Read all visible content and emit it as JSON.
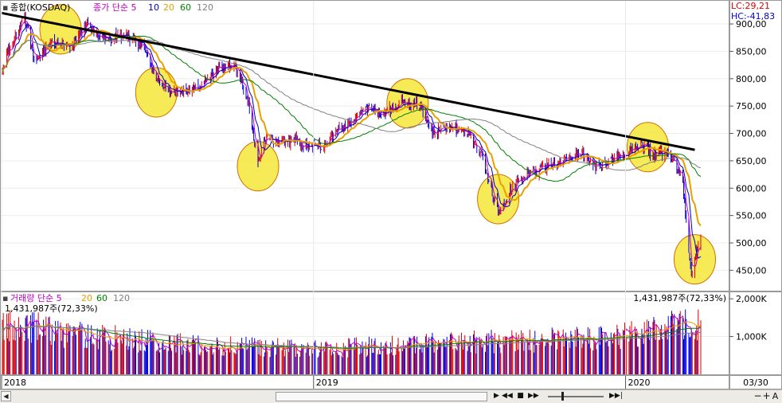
{
  "price_legend": {
    "prefix": "▪",
    "title": "종합(KOSDAQ)",
    "series": [
      {
        "label": "종가 단순 5",
        "color": "#c000c0"
      },
      {
        "label": "10",
        "color": "#0000c0"
      },
      {
        "label": "20",
        "color": "#e8a000"
      },
      {
        "label": "60",
        "color": "#008000"
      },
      {
        "label": "120",
        "color": "#808080"
      }
    ]
  },
  "price_info": {
    "lc": "LC:29,21",
    "hc": "HC:-41,83"
  },
  "volume_legend": {
    "prefix": "▪",
    "series": [
      {
        "label": "거래량  단순 5",
        "color": "#c000c0"
      },
      {
        "label": "20",
        "color": "#e8a000"
      },
      {
        "label": "60",
        "color": "#008000"
      },
      {
        "label": "120",
        "color": "#808080"
      }
    ],
    "value_left": "1,431,987주(72,33%)",
    "value_right": "1,431,987주(72,33%)"
  },
  "x_axis": {
    "labels": [
      "2018",
      "2019",
      "2020"
    ],
    "corner_label": "03/30"
  },
  "toolbar": {
    "icons": [
      "prev-icon",
      "rewind-icon",
      "stop-icon",
      "fast-forward-icon",
      "next-icon",
      "zoom-out-icon",
      "zoom-in-icon",
      "text-icon"
    ],
    "glyphs": [
      "▶",
      "◀◀",
      "■",
      "▶▶",
      "▶▶|",
      "−",
      "+",
      "A"
    ]
  },
  "chart_data": [
    {
      "type": "candlestick",
      "title": "종합(KOSDAQ)",
      "y_ticks": [
        450,
        500,
        550,
        600,
        650,
        700,
        750,
        800,
        850,
        900
      ],
      "y_tick_labels": [
        "450,00",
        "500,00",
        "550,00",
        "600,00",
        "650,00",
        "700,00",
        "750,00",
        "800,00",
        "850,00",
        "900,00"
      ],
      "ylim": [
        420,
        935
      ],
      "x_range": [
        "2018-01",
        "2020-03-30"
      ],
      "close_path": [
        [
          "2018-01-02",
          820
        ],
        [
          "2018-01-29",
          915
        ],
        [
          "2018-02-09",
          830
        ],
        [
          "2018-03-02",
          870
        ],
        [
          "2018-03-26",
          860
        ],
        [
          "2018-04-12",
          900
        ],
        [
          "2018-05-02",
          870
        ],
        [
          "2018-05-25",
          880
        ],
        [
          "2018-06-15",
          860
        ],
        [
          "2018-07-02",
          805
        ],
        [
          "2018-07-17",
          780
        ],
        [
          "2018-08-01",
          775
        ],
        [
          "2018-08-22",
          785
        ],
        [
          "2018-09-13",
          820
        ],
        [
          "2018-10-01",
          825
        ],
        [
          "2018-10-16",
          770
        ],
        [
          "2018-10-29",
          640
        ],
        [
          "2018-11-06",
          690
        ],
        [
          "2018-11-22",
          680
        ],
        [
          "2018-12-10",
          690
        ],
        [
          "2018-12-28",
          675
        ],
        [
          "2019-01-14",
          680
        ],
        [
          "2019-01-31",
          705
        ],
        [
          "2019-02-21",
          730
        ],
        [
          "2019-03-11",
          745
        ],
        [
          "2019-03-25",
          735
        ],
        [
          "2019-04-15",
          760
        ],
        [
          "2019-05-06",
          750
        ],
        [
          "2019-05-21",
          700
        ],
        [
          "2019-06-11",
          715
        ],
        [
          "2019-07-01",
          700
        ],
        [
          "2019-07-18",
          660
        ],
        [
          "2019-08-06",
          555
        ],
        [
          "2019-08-21",
          600
        ],
        [
          "2019-09-10",
          625
        ],
        [
          "2019-09-30",
          640
        ],
        [
          "2019-10-21",
          650
        ],
        [
          "2019-11-11",
          665
        ],
        [
          "2019-11-28",
          640
        ],
        [
          "2019-12-16",
          650
        ],
        [
          "2020-01-02",
          665
        ],
        [
          "2020-01-20",
          680
        ],
        [
          "2020-02-05",
          660
        ],
        [
          "2020-02-21",
          670
        ],
        [
          "2020-03-09",
          610
        ],
        [
          "2020-03-19",
          440
        ],
        [
          "2020-03-30",
          520
        ]
      ],
      "moving_averages": [
        {
          "name": "5",
          "color": "#c000c0"
        },
        {
          "name": "10",
          "color": "#0000c0"
        },
        {
          "name": "20",
          "color": "#e8a000"
        },
        {
          "name": "60",
          "color": "#008000"
        },
        {
          "name": "120",
          "color": "#808080"
        }
      ],
      "annotations": {
        "trendline": {
          "from": [
            "2018-01-02",
            920
          ],
          "to": [
            "2020-03-23",
            670
          ],
          "color": "#000000"
        },
        "circles_color": "#f5e63a",
        "circles": [
          {
            "date": "2018-03-12",
            "price": 890
          },
          {
            "date": "2018-07-02",
            "price": 775
          },
          {
            "date": "2018-10-29",
            "price": 640
          },
          {
            "date": "2019-04-22",
            "price": 755
          },
          {
            "date": "2019-08-06",
            "price": 580
          },
          {
            "date": "2020-01-28",
            "price": 675
          },
          {
            "date": "2020-03-23",
            "price": 470
          }
        ]
      }
    },
    {
      "type": "bar",
      "title": "거래량",
      "y_ticks": [
        1000,
        2000
      ],
      "y_tick_labels": [
        "1,000K",
        "2,000K"
      ],
      "ylim": [
        0,
        2150
      ],
      "volume_path": [
        [
          "2018-01-02",
          1250
        ],
        [
          "2018-01-29",
          1400
        ],
        [
          "2018-03-12",
          1150
        ],
        [
          "2018-05-02",
          1050
        ],
        [
          "2018-07-02",
          900
        ],
        [
          "2018-09-13",
          800
        ],
        [
          "2018-11-06",
          750
        ],
        [
          "2019-01-14",
          700
        ],
        [
          "2019-03-11",
          780
        ],
        [
          "2019-05-06",
          850
        ],
        [
          "2019-07-18",
          900
        ],
        [
          "2019-09-30",
          950
        ],
        [
          "2019-12-16",
          1000
        ],
        [
          "2020-01-20",
          1150
        ],
        [
          "2020-03-09",
          1350
        ],
        [
          "2020-03-30",
          1430
        ]
      ],
      "last_value": 1431987,
      "last_change_pct": 72.33
    }
  ]
}
